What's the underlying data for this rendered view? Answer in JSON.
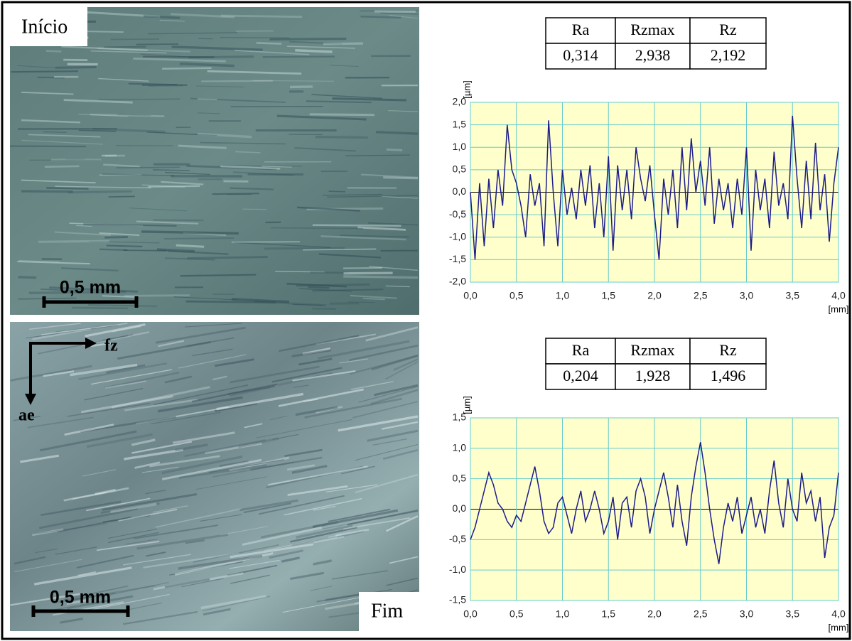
{
  "panels": [
    {
      "label": "Início",
      "scale_bar": "0,5 mm"
    },
    {
      "label": "Fim",
      "scale_bar": "0,5 mm",
      "arrows": [
        "fz",
        "ae"
      ]
    }
  ],
  "tables": [
    {
      "header": [
        "Ra",
        "Rzmax",
        "Rz"
      ],
      "row": [
        "0,314",
        "2,938",
        "2,192"
      ]
    },
    {
      "header": [
        "Ra",
        "Rzmax",
        "Rz"
      ],
      "row": [
        "0,204",
        "1,928",
        "1,496"
      ]
    }
  ],
  "chart_data": [
    {
      "type": "line",
      "ylabel": "[µm]",
      "xlabel": "[mm]",
      "color": "#1c1c8a",
      "grid": true,
      "xlim": [
        0,
        4
      ],
      "ylim": [
        -2,
        2
      ],
      "xticks": [
        {
          "value": 0,
          "label": "0,0"
        },
        {
          "value": 0.5,
          "label": "0,5"
        },
        {
          "value": 1,
          "label": "1,0"
        },
        {
          "value": 1.5,
          "label": "1,5"
        },
        {
          "value": 2,
          "label": "2,0"
        },
        {
          "value": 2.5,
          "label": "2,5"
        },
        {
          "value": 3,
          "label": "3,0"
        },
        {
          "value": 3.5,
          "label": "3,5"
        },
        {
          "value": 4,
          "label": "4,0"
        }
      ],
      "yticks": [
        {
          "value": -2,
          "label": "-2,0"
        },
        {
          "value": -1.5,
          "label": "-1,5"
        },
        {
          "value": -1,
          "label": "-1,0"
        },
        {
          "value": -0.5,
          "label": "-0,5"
        },
        {
          "value": 0,
          "label": "0,0"
        },
        {
          "value": 0.5,
          "label": "0,5"
        },
        {
          "value": 1,
          "label": "1,0"
        },
        {
          "value": 1.5,
          "label": "1,5"
        },
        {
          "value": 2,
          "label": "2,0"
        }
      ],
      "x": [
        0,
        0.05,
        0.1,
        0.15,
        0.2,
        0.25,
        0.3,
        0.35,
        0.4,
        0.45,
        0.5,
        0.55,
        0.6,
        0.65,
        0.7,
        0.75,
        0.8,
        0.85,
        0.9,
        0.95,
        1,
        1.05,
        1.1,
        1.15,
        1.2,
        1.25,
        1.3,
        1.35,
        1.4,
        1.45,
        1.5,
        1.55,
        1.6,
        1.65,
        1.7,
        1.75,
        1.8,
        1.85,
        1.9,
        1.95,
        2,
        2.05,
        2.1,
        2.15,
        2.2,
        2.25,
        2.3,
        2.35,
        2.4,
        2.45,
        2.5,
        2.55,
        2.6,
        2.65,
        2.7,
        2.75,
        2.8,
        2.85,
        2.9,
        2.95,
        3,
        3.05,
        3.1,
        3.15,
        3.2,
        3.25,
        3.3,
        3.35,
        3.4,
        3.45,
        3.5,
        3.55,
        3.6,
        3.65,
        3.7,
        3.75,
        3.8,
        3.85,
        3.9,
        3.95,
        4
      ],
      "values": [
        0,
        -1.5,
        0.2,
        -1.2,
        0.3,
        -0.8,
        0.5,
        -0.3,
        1.5,
        0.5,
        0.2,
        -0.3,
        -1,
        0.4,
        -0.3,
        0.2,
        -1.2,
        1.6,
        0,
        -1.2,
        0.5,
        -0.5,
        0.1,
        -0.6,
        0.5,
        -0.3,
        0.6,
        -0.8,
        0.2,
        -1,
        0.8,
        -1.3,
        0.6,
        -0.4,
        0.5,
        -0.6,
        1,
        0.3,
        -0.2,
        0.6,
        -0.5,
        -1.5,
        0.3,
        -0.5,
        0.5,
        -0.8,
        1,
        -0.4,
        1.2,
        0,
        0.7,
        -0.3,
        1,
        -0.7,
        0.3,
        -0.4,
        0.2,
        -0.8,
        0.3,
        -0.5,
        1,
        -1.3,
        0.5,
        -0.4,
        0.3,
        -0.8,
        0.9,
        -0.3,
        0.2,
        -0.6,
        1.7,
        0.3,
        -0.8,
        0.7,
        -0.6,
        1.1,
        -0.4,
        0.4,
        -1.1,
        0.2,
        1
      ]
    },
    {
      "type": "line",
      "ylabel": "[µm]",
      "xlabel": "[mm]",
      "color": "#1c1c8a",
      "grid": true,
      "xlim": [
        0,
        4
      ],
      "ylim": [
        -1.5,
        1.5
      ],
      "xticks": [
        {
          "value": 0,
          "label": "0,0"
        },
        {
          "value": 0.5,
          "label": "0,5"
        },
        {
          "value": 1,
          "label": "1,0"
        },
        {
          "value": 1.5,
          "label": "1,5"
        },
        {
          "value": 2,
          "label": "2,0"
        },
        {
          "value": 2.5,
          "label": "2,5"
        },
        {
          "value": 3,
          "label": "3,0"
        },
        {
          "value": 3.5,
          "label": "3,5"
        },
        {
          "value": 4,
          "label": "4,0"
        }
      ],
      "yticks": [
        {
          "value": -1.5,
          "label": "-1,5"
        },
        {
          "value": -1,
          "label": "-1,0"
        },
        {
          "value": -0.5,
          "label": "-0,5"
        },
        {
          "value": 0,
          "label": "0,0"
        },
        {
          "value": 0.5,
          "label": "0,5"
        },
        {
          "value": 1,
          "label": "1,0"
        },
        {
          "value": 1.5,
          "label": "1,5"
        }
      ],
      "x": [
        0,
        0.05,
        0.1,
        0.15,
        0.2,
        0.25,
        0.3,
        0.35,
        0.4,
        0.45,
        0.5,
        0.55,
        0.6,
        0.65,
        0.7,
        0.75,
        0.8,
        0.85,
        0.9,
        0.95,
        1,
        1.05,
        1.1,
        1.15,
        1.2,
        1.25,
        1.3,
        1.35,
        1.4,
        1.45,
        1.5,
        1.55,
        1.6,
        1.65,
        1.7,
        1.75,
        1.8,
        1.85,
        1.9,
        1.95,
        2,
        2.05,
        2.1,
        2.15,
        2.2,
        2.25,
        2.3,
        2.35,
        2.4,
        2.45,
        2.5,
        2.55,
        2.6,
        2.65,
        2.7,
        2.75,
        2.8,
        2.85,
        2.9,
        2.95,
        3,
        3.05,
        3.1,
        3.15,
        3.2,
        3.25,
        3.3,
        3.35,
        3.4,
        3.45,
        3.5,
        3.55,
        3.6,
        3.65,
        3.7,
        3.75,
        3.8,
        3.85,
        3.9,
        3.95,
        4
      ],
      "values": [
        -0.5,
        -0.3,
        0,
        0.3,
        0.6,
        0.4,
        0.1,
        0,
        -0.2,
        -0.3,
        -0.1,
        -0.2,
        0.1,
        0.4,
        0.7,
        0.3,
        -0.2,
        -0.4,
        -0.3,
        0.1,
        0.2,
        -0.1,
        -0.4,
        0,
        0.3,
        -0.2,
        0,
        0.3,
        0,
        -0.4,
        -0.2,
        0.2,
        -0.5,
        0.1,
        0.2,
        -0.3,
        0.3,
        0.5,
        0.2,
        -0.4,
        0,
        0.3,
        0.6,
        0.2,
        -0.3,
        0.4,
        -0.2,
        -0.6,
        0.2,
        0.7,
        1.1,
        0.6,
        0,
        -0.5,
        -0.9,
        -0.3,
        0.1,
        -0.2,
        0.2,
        -0.4,
        -0.1,
        0.2,
        -0.3,
        0,
        -0.4,
        0.3,
        0.8,
        0.1,
        -0.3,
        0.5,
        0,
        -0.2,
        0.6,
        0.1,
        0.3,
        -0.2,
        0.2,
        -0.8,
        -0.3,
        -0.1,
        0.6
      ]
    }
  ]
}
